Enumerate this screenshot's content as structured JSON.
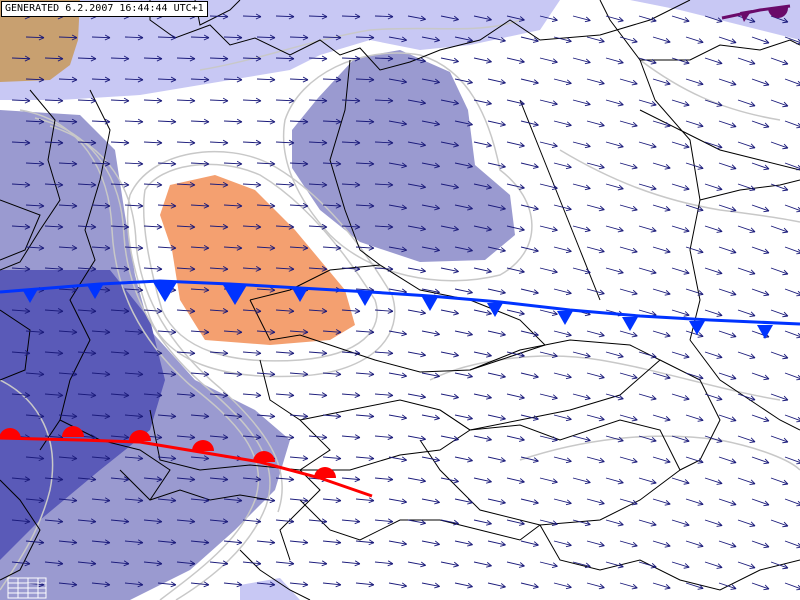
{
  "stamp": {
    "text": "GENERATED 6.2.2007 16:44:44 UTC+1"
  },
  "colors": {
    "warm_area": "#f4a070",
    "brown_area": "#c8a070",
    "pale_blue": "#c8c8f4",
    "mid_blue": "#9a9ad0",
    "deep_blue": "#5a5ab8",
    "cold_front": "#0033ff",
    "warm_front": "#ff0000",
    "occluded_front": "#6a0a6a",
    "wind_arrows": "#1a1a7a",
    "borders": "#000000",
    "isolines": "#c8c8c8"
  },
  "icons": {
    "wind": "wind-arrow-icon",
    "cold_front": "cold-front-triangle-icon",
    "warm_front": "warm-front-semicircle-icon",
    "legend": "legend-grid-icon"
  }
}
